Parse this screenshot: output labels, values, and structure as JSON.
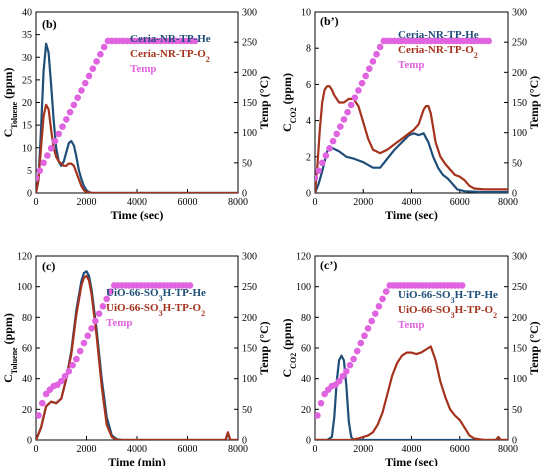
{
  "colors": {
    "he": "#1f4e79",
    "o2": "#a5321c",
    "temp": "#e063e0"
  },
  "chart_data": [
    {
      "type": "line",
      "panel_label": "(b)",
      "xlabel": "Time (sec)",
      "ylabel": "C",
      "ylabel_sub": "Toluene",
      "ylabel_unit": " (ppm)",
      "y2label": "Temp (°C)",
      "xlim": [
        0,
        8000
      ],
      "ylim": [
        0,
        40
      ],
      "y2lim": [
        0,
        300
      ],
      "xticks": [
        0,
        2000,
        4000,
        6000,
        8000
      ],
      "yticks": [
        0,
        5,
        10,
        15,
        20,
        25,
        30,
        35,
        40
      ],
      "y2ticks": [
        0,
        50,
        100,
        150,
        200,
        250,
        300
      ],
      "legend": [
        {
          "base": "Ceria-NR-TP-He",
          "sub": "",
          "tail": "",
          "color_key": "he"
        },
        {
          "base": "Ceria-NR-TP-O",
          "sub": "2",
          "tail": "",
          "color_key": "o2"
        },
        {
          "base": "Temp",
          "sub": "",
          "tail": "",
          "color_key": "temp"
        }
      ],
      "series": [
        {
          "name": "Ceria-NR-TP-He",
          "color_key": "he",
          "x": [
            0,
            100,
            200,
            300,
            400,
            500,
            600,
            700,
            800,
            900,
            1000,
            1100,
            1200,
            1300,
            1400,
            1500,
            1600,
            1700,
            1800,
            1900,
            2000,
            2100,
            2200,
            2400,
            3000,
            5000,
            8000
          ],
          "y": [
            0,
            3,
            14,
            27,
            33,
            31,
            24,
            16,
            10,
            7,
            6,
            7,
            9,
            11,
            11.5,
            10.5,
            8,
            5,
            3,
            1.5,
            0.6,
            0.2,
            0.05,
            0,
            0,
            0,
            0
          ]
        },
        {
          "name": "Ceria-NR-TP-O2",
          "color_key": "o2",
          "x": [
            0,
            100,
            200,
            300,
            400,
            500,
            600,
            700,
            800,
            900,
            1000,
            1100,
            1200,
            1300,
            1400,
            1500,
            1600,
            1700,
            1800,
            1900,
            2000,
            2200,
            3000,
            5000,
            8000
          ],
          "y": [
            0,
            3,
            10,
            17,
            19.5,
            18.5,
            14,
            10,
            8,
            7,
            6.5,
            6,
            6,
            6.5,
            6.5,
            6,
            4.5,
            3,
            1.5,
            0.6,
            0.2,
            0,
            0,
            0,
            0
          ]
        },
        {
          "name": "Temp",
          "color_key": "temp",
          "axis": "right",
          "markers": true,
          "x": [
            0,
            150,
            300,
            450,
            600,
            750,
            900,
            1050,
            1200,
            1350,
            1500,
            1650,
            1800,
            1950,
            2100,
            2250,
            2400,
            2550,
            2700,
            2850,
            3000,
            3150,
            3300,
            3450,
            3600,
            3750,
            3900,
            4050,
            4200,
            4350,
            4500,
            4650,
            4800,
            4950,
            5100,
            5250,
            5400,
            5550,
            5700,
            5850,
            6000,
            6150,
            6300
          ],
          "y": [
            25,
            37,
            50,
            62,
            74,
            86,
            98,
            110,
            122,
            134,
            146,
            158,
            170,
            182,
            194,
            206,
            218,
            230,
            242,
            252,
            252,
            252,
            252,
            252,
            252,
            252,
            252,
            252,
            252,
            252,
            252,
            252,
            252,
            252,
            252,
            252,
            252,
            252,
            252,
            252,
            252,
            252,
            252
          ]
        }
      ]
    },
    {
      "type": "line",
      "panel_label": "(b’)",
      "xlabel": "Time (sec)",
      "ylabel": "C",
      "ylabel_sub": "CO2",
      "ylabel_unit": " (ppm)",
      "y2label": "Temp (°C)",
      "xlim": [
        0,
        8000
      ],
      "ylim": [
        0,
        10
      ],
      "y2lim": [
        0,
        300
      ],
      "xticks": [
        0,
        2000,
        4000,
        6000,
        8000
      ],
      "yticks": [
        0,
        2,
        4,
        6,
        8,
        10
      ],
      "y2ticks": [
        0,
        50,
        100,
        150,
        200,
        250,
        300
      ],
      "legend": [
        {
          "base": "Ceria-NR-TP-He",
          "sub": "",
          "tail": "",
          "color_key": "he"
        },
        {
          "base": "Ceria-NR-TP-O",
          "sub": "2",
          "tail": "",
          "color_key": "o2"
        },
        {
          "base": "Temp",
          "sub": "",
          "tail": "",
          "color_key": "temp"
        }
      ],
      "series": [
        {
          "name": "Ceria-NR-TP-He",
          "color_key": "he",
          "x": [
            0,
            150,
            300,
            500,
            700,
            1000,
            1300,
            1600,
            2000,
            2400,
            2700,
            3000,
            3300,
            3600,
            3900,
            4100,
            4300,
            4500,
            4700,
            4900,
            5100,
            5300,
            5500,
            5700,
            5900,
            6200,
            7000,
            8000
          ],
          "y": [
            0,
            0.5,
            1.2,
            2.3,
            2.5,
            2.3,
            2.0,
            1.9,
            1.7,
            1.4,
            1.4,
            1.9,
            2.4,
            2.8,
            3.2,
            3.3,
            3.2,
            3.3,
            2.8,
            2.0,
            1.4,
            1.0,
            0.8,
            0.5,
            0.2,
            0.1,
            0.05,
            0.05
          ]
        },
        {
          "name": "Ceria-NR-TP-O2",
          "color_key": "o2",
          "x": [
            0,
            100,
            200,
            300,
            400,
            500,
            600,
            700,
            800,
            1000,
            1200,
            1400,
            1600,
            1800,
            2000,
            2200,
            2400,
            2700,
            3000,
            3300,
            3600,
            3900,
            4100,
            4300,
            4500,
            4600,
            4700,
            4800,
            4900,
            5000,
            5200,
            5400,
            5600,
            5800,
            6000,
            6200,
            6400,
            6600,
            7000,
            7500,
            8000
          ],
          "y": [
            0,
            1.5,
            3.5,
            5.0,
            5.7,
            5.9,
            5.9,
            5.7,
            5.4,
            5.0,
            5.0,
            5.2,
            5.2,
            4.8,
            3.9,
            3.0,
            2.4,
            2.2,
            2.4,
            2.7,
            3.0,
            3.3,
            3.5,
            3.8,
            4.6,
            4.8,
            4.8,
            4.4,
            3.6,
            2.8,
            2.0,
            1.6,
            1.3,
            1.0,
            0.9,
            0.7,
            0.4,
            0.25,
            0.2,
            0.2,
            0.2
          ]
        },
        {
          "name": "Temp",
          "color_key": "temp",
          "axis": "right",
          "markers": true,
          "x": [
            0,
            150,
            300,
            450,
            600,
            750,
            900,
            1050,
            1200,
            1350,
            1500,
            1650,
            1800,
            1950,
            2100,
            2250,
            2400,
            2550,
            2700,
            2850,
            3000,
            3150,
            3300,
            3450,
            3600,
            3750,
            3900,
            4050,
            4200,
            4350,
            4500,
            4650,
            4800,
            4950,
            5100,
            5250,
            5400,
            5550,
            5700,
            5850,
            6000,
            6150,
            6300,
            6450,
            6600,
            6750,
            6900,
            7050,
            7200
          ],
          "y": [
            25,
            37,
            50,
            62,
            74,
            86,
            98,
            110,
            122,
            134,
            146,
            158,
            170,
            182,
            194,
            206,
            218,
            230,
            242,
            252,
            252,
            252,
            252,
            252,
            252,
            252,
            252,
            252,
            252,
            252,
            252,
            252,
            252,
            252,
            252,
            252,
            252,
            252,
            252,
            252,
            252,
            252,
            252,
            252,
            252,
            252,
            252,
            252,
            252
          ]
        }
      ]
    },
    {
      "type": "line",
      "panel_label": "(c)",
      "xlabel": "Time (min)",
      "ylabel": "C",
      "ylabel_sub": "Toluene",
      "ylabel_unit": " (ppm)",
      "y2label": "Temp (°C)",
      "xlim": [
        0,
        8000
      ],
      "ylim": [
        0,
        120
      ],
      "y2lim": [
        0,
        300
      ],
      "xticks": [
        0,
        2000,
        4000,
        6000,
        8000
      ],
      "yticks": [
        0,
        20,
        40,
        60,
        80,
        100,
        120
      ],
      "y2ticks": [
        0,
        50,
        100,
        150,
        200,
        250,
        300
      ],
      "legend": [
        {
          "base": "UiO-66-SO",
          "sub": "3",
          "tail": "H-TP-He",
          "color_key": "he"
        },
        {
          "base": "UiO-66-SO",
          "sub": "3",
          "tail": "H-TP-O2",
          "color_key": "o2"
        },
        {
          "base": "Temp",
          "sub": "",
          "tail": "",
          "color_key": "temp"
        }
      ],
      "series": [
        {
          "name": "UiO-66-SO3H-TP-He",
          "color_key": "he",
          "x": [
            0,
            200,
            400,
            600,
            800,
            1000,
            1200,
            1400,
            1600,
            1800,
            1900,
            2000,
            2100,
            2200,
            2400,
            2600,
            2800,
            3000,
            3200,
            3400,
            4000,
            7500,
            7600,
            7700,
            8000
          ],
          "y": [
            0,
            8,
            22,
            25,
            24,
            27,
            40,
            58,
            85,
            104,
            109,
            110,
            107,
            98,
            72,
            40,
            15,
            3,
            0.5,
            0,
            0,
            0,
            4,
            0,
            0
          ]
        },
        {
          "name": "UiO-66-SO3H-TP-O2",
          "color_key": "o2",
          "x": [
            0,
            200,
            400,
            600,
            800,
            1000,
            1200,
            1400,
            1600,
            1800,
            1900,
            2000,
            2100,
            2200,
            2400,
            2600,
            2800,
            3000,
            3200,
            4000,
            7500,
            7600,
            7700,
            8000
          ],
          "y": [
            0,
            8,
            22,
            25,
            24,
            27,
            40,
            56,
            82,
            101,
            106,
            107,
            104,
            95,
            68,
            35,
            10,
            2,
            0,
            0,
            0,
            5,
            0,
            0
          ]
        },
        {
          "name": "Temp",
          "color_key": "temp",
          "axis": "right",
          "markers": true,
          "x": [
            100,
            250,
            400,
            550,
            700,
            850,
            1000,
            1150,
            1300,
            1450,
            1600,
            1750,
            1900,
            2050,
            2200,
            2350,
            2500,
            2650,
            2800,
            2950,
            3100,
            3250,
            3400,
            3550,
            3700,
            3850,
            4000,
            4150,
            4300,
            4450,
            4600,
            4750,
            4900,
            5050,
            5200,
            5350,
            5500,
            5650,
            5800,
            5950,
            6100
          ],
          "y": [
            40,
            60,
            75,
            82,
            88,
            90,
            96,
            104,
            112,
            122,
            132,
            145,
            158,
            170,
            182,
            194,
            206,
            218,
            230,
            242,
            252,
            252,
            252,
            252,
            252,
            252,
            252,
            252,
            252,
            252,
            252,
            252,
            252,
            252,
            252,
            252,
            252,
            252,
            252,
            252,
            252
          ]
        }
      ]
    },
    {
      "type": "line",
      "panel_label": "(c’)",
      "xlabel": "Time (sec)",
      "ylabel": "C",
      "ylabel_sub": "CO2",
      "ylabel_unit": " (ppm)",
      "y2label": "Temp (°C)",
      "xlim": [
        0,
        8000
      ],
      "ylim": [
        0,
        120
      ],
      "y2lim": [
        0,
        300
      ],
      "xticks": [
        0,
        2000,
        4000,
        6000,
        8000
      ],
      "yticks": [
        0,
        20,
        40,
        60,
        80,
        100,
        120
      ],
      "y2ticks": [
        0,
        50,
        100,
        150,
        200,
        250,
        300
      ],
      "legend": [
        {
          "base": "UiO-66-SO",
          "sub": "3",
          "tail": "H-TP-He",
          "color_key": "he"
        },
        {
          "base": "UiO-66-SO",
          "sub": "3",
          "tail": "H-TP-O2",
          "color_key": "o2"
        },
        {
          "base": "Temp",
          "sub": "",
          "tail": "",
          "color_key": "temp"
        }
      ],
      "series": [
        {
          "name": "UiO-66-SO3H-TP-He",
          "color_key": "he",
          "x": [
            0,
            500,
            700,
            800,
            900,
            1000,
            1100,
            1200,
            1300,
            1400,
            1500,
            1600,
            1800,
            8000
          ],
          "y": [
            0,
            0,
            2,
            15,
            38,
            52,
            55,
            52,
            35,
            12,
            2,
            0,
            0,
            0
          ]
        },
        {
          "name": "UiO-66-SO3H-TP-O2",
          "color_key": "o2",
          "x": [
            0,
            1500,
            1800,
            2000,
            2200,
            2400,
            2600,
            2800,
            3000,
            3200,
            3400,
            3600,
            3800,
            4000,
            4200,
            4400,
            4600,
            4800,
            5000,
            5200,
            5400,
            5600,
            5800,
            6000,
            6200,
            6400,
            6600,
            7000,
            7500,
            7600,
            7700,
            8000
          ],
          "y": [
            0,
            0,
            1,
            2,
            3,
            5,
            10,
            18,
            30,
            42,
            50,
            55,
            57,
            57,
            56,
            57,
            59,
            61,
            52,
            38,
            28,
            20,
            16,
            13,
            8,
            3,
            1,
            0,
            0,
            2,
            0,
            0
          ]
        },
        {
          "name": "Temp",
          "color_key": "temp",
          "axis": "right",
          "markers": true,
          "x": [
            100,
            250,
            400,
            550,
            700,
            850,
            1000,
            1150,
            1300,
            1450,
            1600,
            1750,
            1900,
            2050,
            2200,
            2350,
            2500,
            2650,
            2800,
            2950,
            3100,
            3250,
            3400,
            3550,
            3700,
            3850,
            4000,
            4150,
            4300,
            4450,
            4600,
            4750,
            4900,
            5050,
            5200,
            5350,
            5500,
            5650,
            5800,
            5950,
            6100
          ],
          "y": [
            40,
            60,
            75,
            82,
            88,
            90,
            96,
            104,
            112,
            122,
            132,
            145,
            158,
            170,
            182,
            194,
            206,
            218,
            230,
            242,
            252,
            252,
            252,
            252,
            252,
            252,
            252,
            252,
            252,
            252,
            252,
            252,
            252,
            252,
            252,
            252,
            252,
            252,
            252,
            252,
            252
          ]
        }
      ]
    }
  ]
}
